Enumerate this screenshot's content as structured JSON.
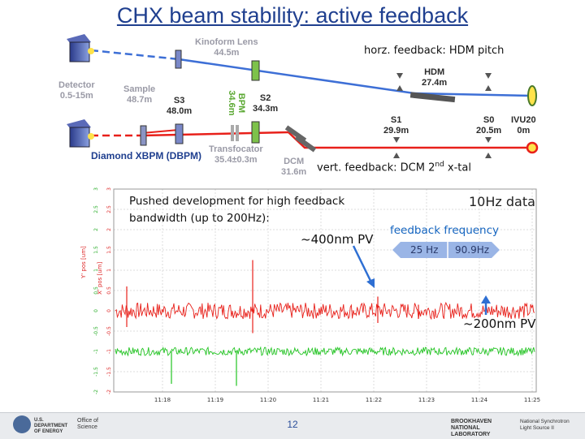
{
  "slide": {
    "title": "CHX beam stability: active feedback",
    "page_number": "12"
  },
  "beamline": {
    "kinoform_lens": [
      "Kinoform Lens",
      "44.5m"
    ],
    "detector": [
      "Detector",
      "0.5-15m"
    ],
    "sample": [
      "Sample",
      "48.7m"
    ],
    "s3": [
      "S3",
      "48.0m"
    ],
    "bpm": [
      "BPM",
      "34.6m"
    ],
    "s2": [
      "S2",
      "34.3m"
    ],
    "hdm": [
      "HDM",
      "27.4m"
    ],
    "s1": [
      "S1",
      "29.9m"
    ],
    "s0": [
      "S0",
      "20.5m"
    ],
    "ivu": [
      "IVU20",
      "0m"
    ],
    "transfocator": [
      "Transfocator",
      "35.4±0.3m"
    ],
    "dcm": [
      "DCM",
      "31.6m"
    ],
    "diamond_xbpm": "Diamond XBPM (DBPM)",
    "horz_feedback": "horz. feedback: HDM pitch",
    "vert_feedback_pre": "vert. feedback: DCM 2",
    "vert_feedback_sup": "nd",
    "vert_feedback_post": " x-tal"
  },
  "annotations": {
    "pushed_note": "Pushed development for high feedback bandwidth (up to 200Hz):",
    "data_rate": "10Hz data",
    "feedback_frequency": "feedback frequency",
    "freq_low": "25 Hz",
    "freq_high": "90.9Hz",
    "pv_400": "~400nm PV",
    "pv_200": "~200nm PV"
  },
  "chart_data": {
    "type": "line",
    "x_ticks": [
      "11:18",
      "11:19",
      "11:20",
      "11:21",
      "11:22",
      "11:23",
      "11:24",
      "11:25"
    ],
    "series": [
      {
        "name": "Y' pos [um]",
        "color": "#e8201a",
        "baseline": 0.0,
        "noise_pv_nm": 400
      },
      {
        "name": "X' pos [um]",
        "color": "#22c422",
        "baseline": -1.0,
        "noise_pv_nm": 200
      }
    ],
    "y_axis_labels": [
      "Y' pos [um]",
      "X' pos [um]"
    ],
    "y_ticks": [
      "3",
      "2.5",
      "2",
      "1.5",
      "1",
      "0.5",
      "0",
      "-0.5",
      "-1",
      "-1.5",
      "-2"
    ],
    "grid": true
  },
  "colors": {
    "title": "#1f3f8f",
    "red_beam": "#e8201a",
    "blue_beam": "#3d6fd6",
    "accent_blue": "#1565c0"
  },
  "footer": {
    "doe_text": "U.S. DEPARTMENT OF ENERGY",
    "office": "Office of Science",
    "bnl": "BROOKHAVEN NATIONAL LABORATORY",
    "nsls": "National Synchrotron Light Source II"
  }
}
